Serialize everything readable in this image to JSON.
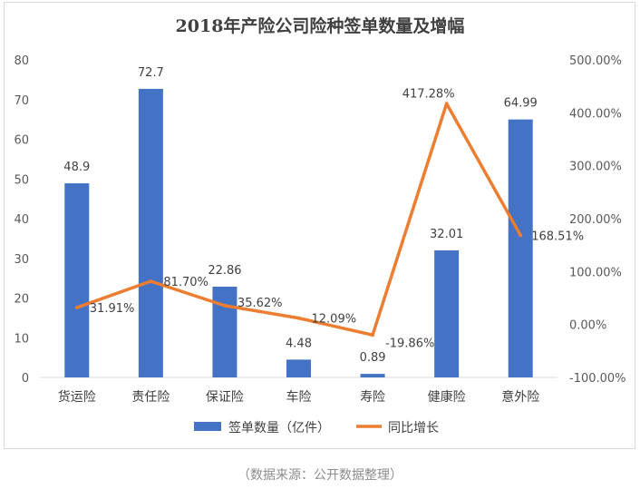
{
  "chart_data": {
    "type": "bar+line",
    "title": "2018年产险公司险种签单数量及增幅",
    "categories": [
      "货运险",
      "责任险",
      "保证险",
      "车险",
      "寿险",
      "健康险",
      "意外险"
    ],
    "series": [
      {
        "name": "签单数量（亿件）",
        "type": "bar",
        "axis": "left",
        "values": [
          48.9,
          72.7,
          22.86,
          4.48,
          0.89,
          32.01,
          64.99
        ],
        "labels": [
          "48.9",
          "72.7",
          "22.86",
          "4.48",
          "0.89",
          "32.01",
          "64.99"
        ]
      },
      {
        "name": "同比增长",
        "type": "line",
        "axis": "right",
        "values": [
          31.91,
          81.7,
          35.62,
          12.09,
          -19.86,
          417.28,
          168.51
        ],
        "labels": [
          "31.91%",
          "81.70%",
          "35.62%",
          "12.09%",
          "-19.86%",
          "417.28%",
          "168.51%"
        ]
      }
    ],
    "y_left": {
      "min": 0,
      "max": 80,
      "ticks": [
        "0",
        "10",
        "20",
        "30",
        "40",
        "50",
        "60",
        "70",
        "80"
      ]
    },
    "y_right": {
      "min": -100,
      "max": 500,
      "ticks": [
        "-100.00%",
        "0.00%",
        "100.00%",
        "200.00%",
        "300.00%",
        "400.00%",
        "500.00%"
      ]
    },
    "legend_position": "bottom",
    "colors": {
      "bar": "#4472c4",
      "line": "#ed7d31"
    }
  },
  "source_note": "（数据来源：公开数据整理）"
}
